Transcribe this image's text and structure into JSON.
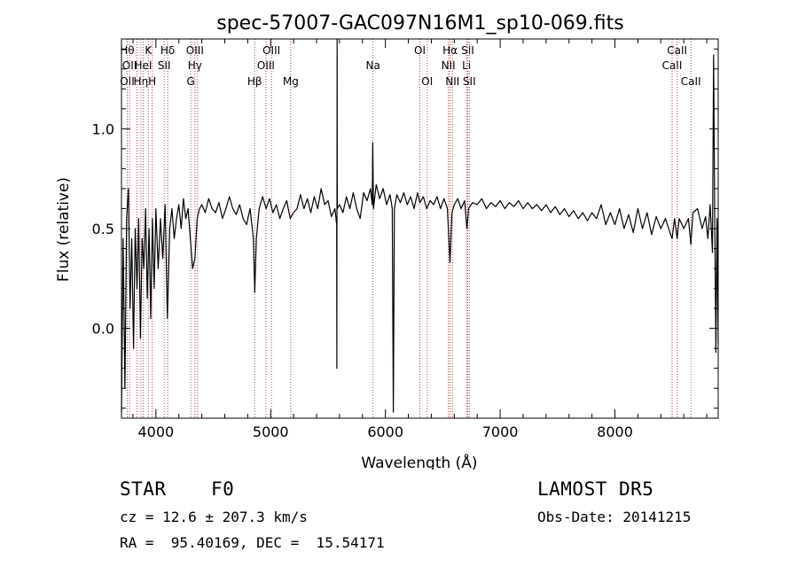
{
  "chart_data": {
    "type": "line",
    "title": "spec-57007-GAC097N16M1_sp10-069.fits",
    "xlabel": "Wavelength (Å)",
    "ylabel": "Flux (relative)",
    "xlim": [
      3700,
      8900
    ],
    "ylim": [
      -0.45,
      1.45
    ],
    "x_ticks": [
      4000,
      5000,
      6000,
      7000,
      8000
    ],
    "x_tick_labels": [
      "4000",
      "5000",
      "6000",
      "7000",
      "8000"
    ],
    "y_ticks": [
      0.0,
      0.5,
      1.0
    ],
    "y_tick_labels": [
      "0.0",
      "0.5",
      "1.0"
    ],
    "grid": false,
    "series": [
      {
        "color": "#000000",
        "points": [
          [
            3700,
            -0.42
          ],
          [
            3715,
            0.45
          ],
          [
            3730,
            -0.3
          ],
          [
            3745,
            0.55
          ],
          [
            3760,
            0.7
          ],
          [
            3775,
            0.1
          ],
          [
            3790,
            0.45
          ],
          [
            3805,
            -0.1
          ],
          [
            3820,
            0.5
          ],
          [
            3835,
            0.2
          ],
          [
            3850,
            0.55
          ],
          [
            3865,
            -0.05
          ],
          [
            3880,
            0.45
          ],
          [
            3895,
            0.3
          ],
          [
            3910,
            0.6
          ],
          [
            3925,
            0.15
          ],
          [
            3940,
            0.5
          ],
          [
            3955,
            0.05
          ],
          [
            3970,
            0.55
          ],
          [
            3985,
            0.2
          ],
          [
            4000,
            0.6
          ],
          [
            4020,
            0.3
          ],
          [
            4040,
            0.55
          ],
          [
            4060,
            0.35
          ],
          [
            4080,
            0.62
          ],
          [
            4100,
            0.05
          ],
          [
            4120,
            0.5
          ],
          [
            4140,
            0.6
          ],
          [
            4160,
            0.45
          ],
          [
            4180,
            0.55
          ],
          [
            4200,
            0.62
          ],
          [
            4220,
            0.5
          ],
          [
            4240,
            0.65
          ],
          [
            4260,
            0.55
          ],
          [
            4280,
            0.6
          ],
          [
            4300,
            0.45
          ],
          [
            4320,
            0.3
          ],
          [
            4340,
            0.35
          ],
          [
            4360,
            0.55
          ],
          [
            4380,
            0.6
          ],
          [
            4400,
            0.62
          ],
          [
            4430,
            0.58
          ],
          [
            4460,
            0.65
          ],
          [
            4490,
            0.6
          ],
          [
            4520,
            0.58
          ],
          [
            4550,
            0.63
          ],
          [
            4580,
            0.55
          ],
          [
            4610,
            0.6
          ],
          [
            4640,
            0.66
          ],
          [
            4670,
            0.6
          ],
          [
            4700,
            0.57
          ],
          [
            4730,
            0.62
          ],
          [
            4760,
            0.55
          ],
          [
            4790,
            0.52
          ],
          [
            4820,
            0.6
          ],
          [
            4850,
            0.45
          ],
          [
            4861,
            0.18
          ],
          [
            4875,
            0.45
          ],
          [
            4900,
            0.6
          ],
          [
            4930,
            0.66
          ],
          [
            4960,
            0.6
          ],
          [
            4990,
            0.65
          ],
          [
            5020,
            0.58
          ],
          [
            5050,
            0.62
          ],
          [
            5080,
            0.55
          ],
          [
            5110,
            0.6
          ],
          [
            5140,
            0.64
          ],
          [
            5170,
            0.55
          ],
          [
            5200,
            0.58
          ],
          [
            5230,
            0.6
          ],
          [
            5260,
            0.67
          ],
          [
            5290,
            0.6
          ],
          [
            5320,
            0.65
          ],
          [
            5350,
            0.58
          ],
          [
            5380,
            0.66
          ],
          [
            5410,
            0.6
          ],
          [
            5440,
            0.7
          ],
          [
            5470,
            0.62
          ],
          [
            5500,
            0.64
          ],
          [
            5530,
            0.56
          ],
          [
            5560,
            0.6
          ],
          [
            5575,
            0.52
          ],
          [
            5577,
            -0.2
          ],
          [
            5579,
            1.45
          ],
          [
            5581,
            0.6
          ],
          [
            5600,
            0.62
          ],
          [
            5630,
            0.58
          ],
          [
            5660,
            0.66
          ],
          [
            5690,
            0.6
          ],
          [
            5720,
            0.68
          ],
          [
            5750,
            0.6
          ],
          [
            5780,
            0.55
          ],
          [
            5810,
            0.68
          ],
          [
            5840,
            0.64
          ],
          [
            5870,
            0.7
          ],
          [
            5885,
            0.62
          ],
          [
            5890,
            0.93
          ],
          [
            5896,
            0.6
          ],
          [
            5920,
            0.72
          ],
          [
            5950,
            0.65
          ],
          [
            5980,
            0.7
          ],
          [
            6010,
            0.62
          ],
          [
            6040,
            0.67
          ],
          [
            6060,
            0.6
          ],
          [
            6069,
            -0.42
          ],
          [
            6078,
            0.6
          ],
          [
            6100,
            0.67
          ],
          [
            6130,
            0.63
          ],
          [
            6160,
            0.68
          ],
          [
            6190,
            0.62
          ],
          [
            6220,
            0.66
          ],
          [
            6250,
            0.6
          ],
          [
            6280,
            0.68
          ],
          [
            6300,
            0.63
          ],
          [
            6330,
            0.66
          ],
          [
            6360,
            0.6
          ],
          [
            6390,
            0.64
          ],
          [
            6420,
            0.62
          ],
          [
            6450,
            0.66
          ],
          [
            6480,
            0.6
          ],
          [
            6510,
            0.65
          ],
          [
            6540,
            0.6
          ],
          [
            6563,
            0.33
          ],
          [
            6580,
            0.58
          ],
          [
            6600,
            0.62
          ],
          [
            6630,
            0.65
          ],
          [
            6660,
            0.6
          ],
          [
            6690,
            0.64
          ],
          [
            6710,
            0.5
          ],
          [
            6725,
            0.6
          ],
          [
            6760,
            0.63
          ],
          [
            6800,
            0.62
          ],
          [
            6840,
            0.65
          ],
          [
            6880,
            0.6
          ],
          [
            6920,
            0.63
          ],
          [
            6960,
            0.61
          ],
          [
            7000,
            0.64
          ],
          [
            7040,
            0.6
          ],
          [
            7080,
            0.63
          ],
          [
            7120,
            0.61
          ],
          [
            7160,
            0.64
          ],
          [
            7200,
            0.6
          ],
          [
            7240,
            0.63
          ],
          [
            7280,
            0.6
          ],
          [
            7320,
            0.62
          ],
          [
            7360,
            0.59
          ],
          [
            7400,
            0.62
          ],
          [
            7440,
            0.58
          ],
          [
            7480,
            0.61
          ],
          [
            7520,
            0.57
          ],
          [
            7560,
            0.6
          ],
          [
            7600,
            0.56
          ],
          [
            7640,
            0.59
          ],
          [
            7680,
            0.55
          ],
          [
            7720,
            0.58
          ],
          [
            7760,
            0.54
          ],
          [
            7800,
            0.58
          ],
          [
            7840,
            0.55
          ],
          [
            7880,
            0.62
          ],
          [
            7920,
            0.52
          ],
          [
            7960,
            0.58
          ],
          [
            8000,
            0.52
          ],
          [
            8040,
            0.6
          ],
          [
            8080,
            0.5
          ],
          [
            8120,
            0.57
          ],
          [
            8160,
            0.48
          ],
          [
            8200,
            0.6
          ],
          [
            8240,
            0.5
          ],
          [
            8280,
            0.58
          ],
          [
            8320,
            0.47
          ],
          [
            8360,
            0.56
          ],
          [
            8400,
            0.5
          ],
          [
            8440,
            0.55
          ],
          [
            8480,
            0.48
          ],
          [
            8498,
            0.45
          ],
          [
            8520,
            0.55
          ],
          [
            8542,
            0.45
          ],
          [
            8560,
            0.55
          ],
          [
            8600,
            0.5
          ],
          [
            8640,
            0.55
          ],
          [
            8662,
            0.42
          ],
          [
            8680,
            0.58
          ],
          [
            8720,
            0.6
          ],
          [
            8760,
            0.5
          ],
          [
            8790,
            0.56
          ],
          [
            8810,
            0.45
          ],
          [
            8830,
            0.62
          ],
          [
            8850,
            0.38
          ],
          [
            8860,
            1.37
          ],
          [
            8870,
            0.55
          ],
          [
            8880,
            -0.12
          ],
          [
            8890,
            0.55
          ],
          [
            8900,
            -0.08
          ]
        ]
      }
    ],
    "lines": [
      {
        "wl": 3750,
        "color": "#b84040",
        "labels": [
          {
            "row": 0,
            "text": "Hθ"
          },
          {
            "row": 2,
            "text": "OII"
          }
        ]
      },
      {
        "wl": 3770,
        "color": "#b84040",
        "labels": [
          {
            "row": 1,
            "text": "OII"
          }
        ]
      },
      {
        "wl": 3835,
        "color": "#b84040",
        "labels": []
      },
      {
        "wl": 3869,
        "color": "#b84040",
        "labels": [
          {
            "row": 2,
            "text": "Hη"
          }
        ]
      },
      {
        "wl": 3889,
        "color": "#b84040",
        "labels": [
          {
            "row": 1,
            "text": "HeI"
          }
        ]
      },
      {
        "wl": 3934,
        "color": "#b84040",
        "labels": [
          {
            "row": 0,
            "text": "K"
          }
        ]
      },
      {
        "wl": 3968,
        "color": "#b84040",
        "labels": [
          {
            "row": 2,
            "text": "H"
          }
        ]
      },
      {
        "wl": 4072,
        "color": "#b84040",
        "labels": [
          {
            "row": 1,
            "text": "SII"
          }
        ]
      },
      {
        "wl": 4102,
        "color": "#b84040",
        "labels": [
          {
            "row": 0,
            "text": "Hδ"
          }
        ]
      },
      {
        "wl": 4304,
        "color": "#b84040",
        "labels": [
          {
            "row": 2,
            "text": "G"
          }
        ]
      },
      {
        "wl": 4340,
        "color": "#b84040",
        "labels": [
          {
            "row": 0,
            "text": "OIII"
          },
          {
            "row": 1,
            "text": "Hγ"
          }
        ]
      },
      {
        "wl": 4363,
        "color": "#b84040",
        "labels": []
      },
      {
        "wl": 4861,
        "color": "#b84040",
        "labels": [
          {
            "row": 2,
            "text": "Hβ"
          }
        ]
      },
      {
        "wl": 4959,
        "color": "#b84040",
        "labels": [
          {
            "row": 1,
            "text": "OIII"
          }
        ]
      },
      {
        "wl": 5007,
        "color": "#b84040",
        "labels": [
          {
            "row": 0,
            "text": "OIII"
          }
        ]
      },
      {
        "wl": 5175,
        "color": "#b84040",
        "labels": [
          {
            "row": 2,
            "text": "Mg"
          }
        ]
      },
      {
        "wl": 5892,
        "color": "#b84040",
        "labels": [
          {
            "row": 1,
            "text": "Na"
          }
        ]
      },
      {
        "wl": 6300,
        "color": "#b84040",
        "labels": [
          {
            "row": 0,
            "text": "OI"
          }
        ]
      },
      {
        "wl": 6364,
        "color": "#b84040",
        "labels": [
          {
            "row": 2,
            "text": "OI"
          }
        ]
      },
      {
        "wl": 6548,
        "color": "#b84040",
        "labels": [
          {
            "row": 1,
            "text": "NII"
          }
        ]
      },
      {
        "wl": 6563,
        "color": "#b84040",
        "labels": [
          {
            "row": 0,
            "text": "Hα"
          }
        ]
      },
      {
        "wl": 6584,
        "color": "#b84040",
        "labels": [
          {
            "row": 2,
            "text": "NII"
          }
        ]
      },
      {
        "wl": 6707,
        "color": "#b84040",
        "labels": [
          {
            "row": 1,
            "text": "Li"
          }
        ]
      },
      {
        "wl": 6717,
        "color": "#b84040",
        "labels": [
          {
            "row": 0,
            "text": "SII"
          }
        ]
      },
      {
        "wl": 6731,
        "color": "#b84040",
        "labels": [
          {
            "row": 2,
            "text": "SII"
          }
        ]
      },
      {
        "wl": 8498,
        "color": "#b84040",
        "labels": [
          {
            "row": 1,
            "text": "CaII"
          }
        ]
      },
      {
        "wl": 8542,
        "color": "#b84040",
        "labels": [
          {
            "row": 0,
            "text": "CaII"
          }
        ]
      },
      {
        "wl": 8662,
        "color": "#b84040",
        "labels": [
          {
            "row": 2,
            "text": "CaII"
          }
        ]
      }
    ]
  },
  "info": {
    "class_label": "STAR",
    "subclass": "F0",
    "survey": "LAMOST DR5",
    "redshift": "cz = 12.6 ± 207.3 km/s",
    "obs_date": "Obs-Date: 20141215",
    "coords": "RA =  95.40169, DEC =  15.54171"
  }
}
